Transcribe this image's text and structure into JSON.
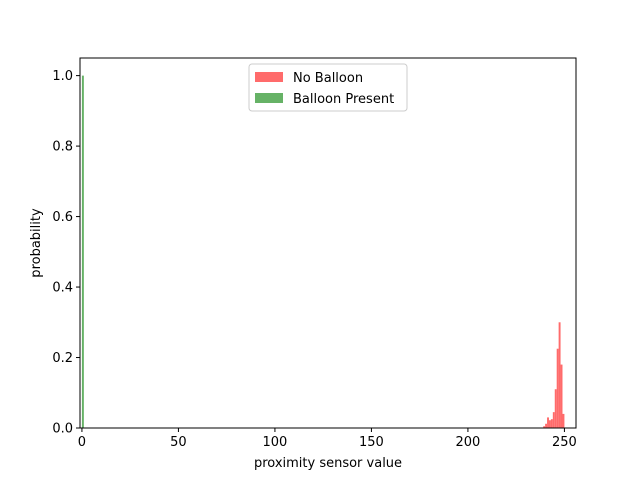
{
  "chart_data": {
    "type": "bar",
    "title": "",
    "xlabel": "proximity sensor value",
    "ylabel": "probability",
    "xlim": [
      -1,
      256
    ],
    "ylim": [
      0,
      1.05
    ],
    "xticks": [
      0,
      50,
      100,
      150,
      200,
      250
    ],
    "yticks": [
      0.0,
      0.2,
      0.4,
      0.6,
      0.8,
      1.0
    ],
    "xtick_labels": [
      "0",
      "50",
      "100",
      "150",
      "200",
      "250"
    ],
    "ytick_labels": [
      "0.0",
      "0.2",
      "0.4",
      "0.6",
      "0.8",
      "1.0"
    ],
    "bin_width": 1,
    "grid": false,
    "legend_position": "upper-center",
    "series": [
      {
        "name": "No Balloon",
        "color": "#ff6b6b",
        "bars": [
          {
            "x": 239,
            "y": 0.005
          },
          {
            "x": 240,
            "y": 0.012
          },
          {
            "x": 241,
            "y": 0.03
          },
          {
            "x": 242,
            "y": 0.022
          },
          {
            "x": 243,
            "y": 0.025
          },
          {
            "x": 244,
            "y": 0.045
          },
          {
            "x": 245,
            "y": 0.11
          },
          {
            "x": 246,
            "y": 0.225
          },
          {
            "x": 247,
            "y": 0.3
          },
          {
            "x": 248,
            "y": 0.18
          },
          {
            "x": 249,
            "y": 0.04
          }
        ]
      },
      {
        "name": "Balloon Present",
        "color": "#66b266",
        "bars": [
          {
            "x": 0,
            "y": 1.0
          }
        ]
      }
    ]
  }
}
